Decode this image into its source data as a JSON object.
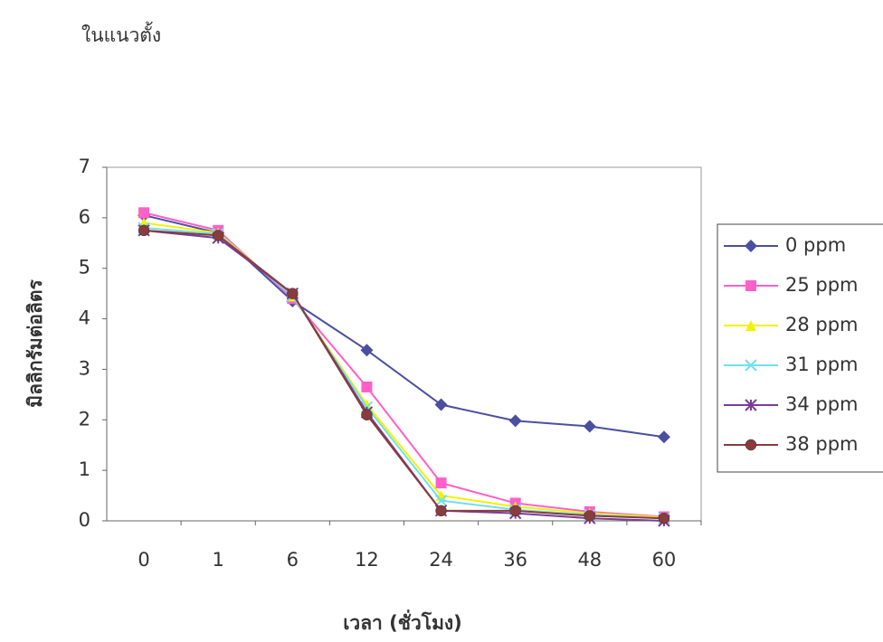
{
  "chart_data": {
    "type": "line",
    "title": "ในแนวตั้ง",
    "x_label": "เวลา (ชั่วโมง)",
    "y_label": "มิลลิกรัมต่อลิตร",
    "categories": [
      "0",
      "1",
      "6",
      "12",
      "24",
      "36",
      "48",
      "60"
    ],
    "ylim": [
      0,
      7
    ],
    "yticks": [
      0,
      1,
      2,
      3,
      4,
      5,
      6,
      7
    ],
    "grid": false,
    "legend": "right",
    "series": [
      {
        "name": "0 ppm",
        "color": "#4b4fa0",
        "marker": "diamond",
        "values": [
          6.05,
          5.7,
          4.35,
          3.38,
          2.3,
          1.98,
          1.87,
          1.66
        ]
      },
      {
        "name": "25 ppm",
        "color": "#ff5fc8",
        "marker": "square",
        "values": [
          6.1,
          5.75,
          4.4,
          2.65,
          0.75,
          0.35,
          0.18,
          0.08
        ]
      },
      {
        "name": "28 ppm",
        "color": "#f2f200",
        "marker": "triangle",
        "values": [
          5.9,
          5.7,
          4.45,
          2.3,
          0.5,
          0.28,
          0.15,
          0.07
        ]
      },
      {
        "name": "31 ppm",
        "color": "#6fe0f0",
        "marker": "x",
        "values": [
          5.8,
          5.68,
          4.45,
          2.25,
          0.4,
          0.22,
          0.12,
          0.05
        ]
      },
      {
        "name": "34 ppm",
        "color": "#7a3d96",
        "marker": "star",
        "values": [
          5.75,
          5.6,
          4.5,
          2.15,
          0.2,
          0.15,
          0.05,
          0.0
        ]
      },
      {
        "name": "38 ppm",
        "color": "#8a3b3b",
        "marker": "circle",
        "values": [
          5.75,
          5.65,
          4.5,
          2.1,
          0.2,
          0.2,
          0.1,
          0.05
        ]
      }
    ]
  }
}
